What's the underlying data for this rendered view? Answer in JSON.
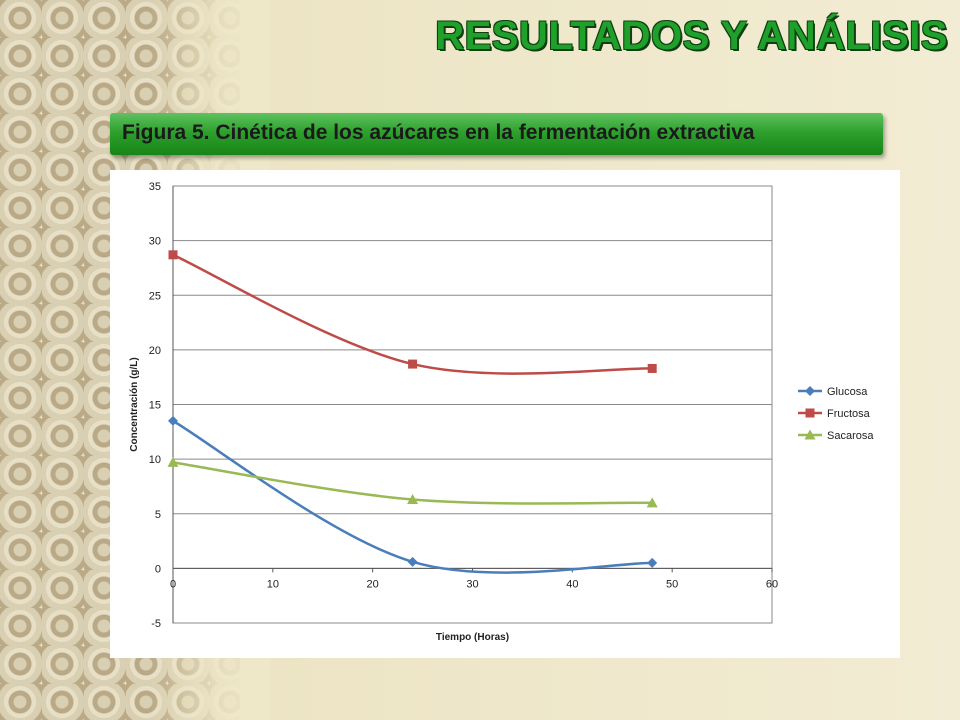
{
  "slide": {
    "title": "RESULTADOS Y ANÁLISIS",
    "caption": "Figura 5. Cinética de los azúcares en la fermentación extractiva"
  },
  "colors": {
    "title_green": "#1fa02a",
    "caption_green": "#2ea02e",
    "glucosa": "#4a7ebb",
    "fructosa": "#be4b48",
    "sacarosa": "#98b954"
  },
  "chart_data": {
    "type": "line",
    "xlabel": "Tiempo (Horas)",
    "ylabel": "Concentración (g/L)",
    "xlim": [
      0,
      60
    ],
    "ylim": [
      -5,
      35
    ],
    "xticks": [
      0,
      10,
      20,
      30,
      40,
      50,
      60
    ],
    "yticks": [
      -5,
      0,
      5,
      10,
      15,
      20,
      25,
      30,
      35
    ],
    "grid": "horizontal",
    "smooth": true,
    "legend_position": "right",
    "series": [
      {
        "name": "Glucosa",
        "marker": "diamond",
        "color": "#4a7ebb",
        "x": [
          0,
          24,
          48
        ],
        "y": [
          13.5,
          0.6,
          0.5
        ]
      },
      {
        "name": "Fructosa",
        "marker": "square",
        "color": "#be4b48",
        "x": [
          0,
          24,
          48
        ],
        "y": [
          28.7,
          18.7,
          18.3
        ]
      },
      {
        "name": "Sacarosa",
        "marker": "triangle",
        "color": "#98b954",
        "x": [
          0,
          24,
          48
        ],
        "y": [
          9.7,
          6.3,
          6.0
        ]
      }
    ]
  }
}
